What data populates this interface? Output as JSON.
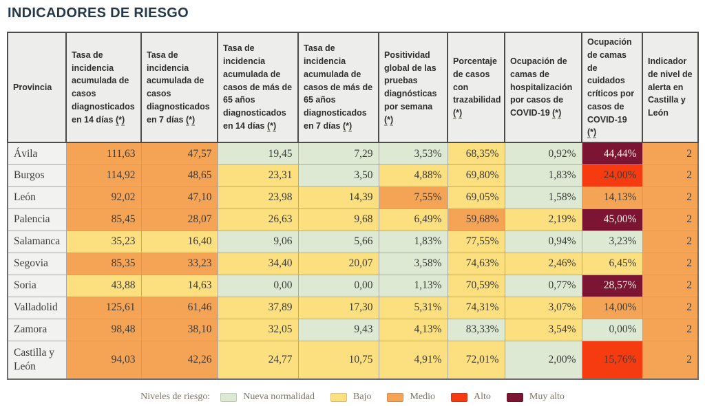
{
  "page": {
    "title": "INDICADORES DE RIESGO"
  },
  "table": {
    "footnote_marker": "(*)",
    "columns": [
      {
        "label": "Provincia",
        "footnote": false
      },
      {
        "label": "Tasa de incidencia acumulada de casos diagnosticados en 14 días",
        "footnote": true
      },
      {
        "label": "Tasa de incidencia acumulada de casos diagnosticados en 7 días",
        "footnote": true
      },
      {
        "label": "Tasa de incidencia acumulada de casos de más de 65 años diagnosticados en 14 días",
        "footnote": true
      },
      {
        "label": "Tasa de incidencia acumulada de casos de más de 65 años diagnosticados en 7 días",
        "footnote": true
      },
      {
        "label": "Positividad global de las pruebas diagnósticas por semana",
        "footnote": true
      },
      {
        "label": "Porcentaje de casos con trazabilidad",
        "footnote": true
      },
      {
        "label": "Ocupación de camas de hospitalización por casos de COVID-19",
        "footnote": true
      },
      {
        "label": "Ocupación de camas de cuidados críticos por casos de COVID-19",
        "footnote": true
      },
      {
        "label": "Indicador de nivel de alerta en Castilla y León",
        "footnote": false
      }
    ],
    "rows": [
      {
        "province": "Ávila",
        "cells": [
          {
            "value": "111,63",
            "level": "medio"
          },
          {
            "value": "47,57",
            "level": "medio"
          },
          {
            "value": "19,45",
            "level": "nueva"
          },
          {
            "value": "7,29",
            "level": "nueva"
          },
          {
            "value": "3,53%",
            "level": "nueva"
          },
          {
            "value": "68,35%",
            "level": "bajo"
          },
          {
            "value": "0,92%",
            "level": "nueva"
          },
          {
            "value": "44,44%",
            "level": "muyalto"
          },
          {
            "value": "2",
            "level": "medio"
          }
        ]
      },
      {
        "province": "Burgos",
        "cells": [
          {
            "value": "114,92",
            "level": "medio"
          },
          {
            "value": "48,65",
            "level": "medio"
          },
          {
            "value": "23,31",
            "level": "bajo"
          },
          {
            "value": "3,50",
            "level": "nueva"
          },
          {
            "value": "4,88%",
            "level": "bajo"
          },
          {
            "value": "69,80%",
            "level": "bajo"
          },
          {
            "value": "1,83%",
            "level": "nueva"
          },
          {
            "value": "24,00%",
            "level": "alto"
          },
          {
            "value": "2",
            "level": "medio"
          }
        ]
      },
      {
        "province": "León",
        "cells": [
          {
            "value": "92,02",
            "level": "medio"
          },
          {
            "value": "47,10",
            "level": "medio"
          },
          {
            "value": "23,98",
            "level": "bajo"
          },
          {
            "value": "14,39",
            "level": "bajo"
          },
          {
            "value": "7,55%",
            "level": "medio"
          },
          {
            "value": "69,05%",
            "level": "bajo"
          },
          {
            "value": "1,58%",
            "level": "nueva"
          },
          {
            "value": "14,13%",
            "level": "medio"
          },
          {
            "value": "2",
            "level": "medio"
          }
        ]
      },
      {
        "province": "Palencia",
        "cells": [
          {
            "value": "85,45",
            "level": "medio"
          },
          {
            "value": "28,07",
            "level": "medio"
          },
          {
            "value": "26,63",
            "level": "bajo"
          },
          {
            "value": "9,68",
            "level": "bajo"
          },
          {
            "value": "6,49%",
            "level": "bajo"
          },
          {
            "value": "59,68%",
            "level": "medio"
          },
          {
            "value": "2,19%",
            "level": "bajo"
          },
          {
            "value": "45,00%",
            "level": "muyalto"
          },
          {
            "value": "2",
            "level": "medio"
          }
        ]
      },
      {
        "province": "Salamanca",
        "cells": [
          {
            "value": "35,23",
            "level": "bajo"
          },
          {
            "value": "16,40",
            "level": "bajo"
          },
          {
            "value": "9,06",
            "level": "nueva"
          },
          {
            "value": "5,66",
            "level": "nueva"
          },
          {
            "value": "1,83%",
            "level": "nueva"
          },
          {
            "value": "77,55%",
            "level": "bajo"
          },
          {
            "value": "0,94%",
            "level": "nueva"
          },
          {
            "value": "3,23%",
            "level": "nueva"
          },
          {
            "value": "2",
            "level": "medio"
          }
        ]
      },
      {
        "province": "Segovia",
        "cells": [
          {
            "value": "85,35",
            "level": "medio"
          },
          {
            "value": "33,23",
            "level": "medio"
          },
          {
            "value": "34,40",
            "level": "bajo"
          },
          {
            "value": "20,07",
            "level": "bajo"
          },
          {
            "value": "3,58%",
            "level": "nueva"
          },
          {
            "value": "74,63%",
            "level": "bajo"
          },
          {
            "value": "2,46%",
            "level": "bajo"
          },
          {
            "value": "6,45%",
            "level": "bajo"
          },
          {
            "value": "2",
            "level": "medio"
          }
        ]
      },
      {
        "province": "Soria",
        "cells": [
          {
            "value": "43,88",
            "level": "bajo"
          },
          {
            "value": "14,63",
            "level": "bajo"
          },
          {
            "value": "0,00",
            "level": "nueva"
          },
          {
            "value": "0,00",
            "level": "nueva"
          },
          {
            "value": "1,13%",
            "level": "nueva"
          },
          {
            "value": "70,59%",
            "level": "bajo"
          },
          {
            "value": "0,77%",
            "level": "nueva"
          },
          {
            "value": "28,57%",
            "level": "muyalto"
          },
          {
            "value": "2",
            "level": "medio"
          }
        ]
      },
      {
        "province": "Valladolid",
        "cells": [
          {
            "value": "125,61",
            "level": "medio"
          },
          {
            "value": "61,46",
            "level": "medio"
          },
          {
            "value": "37,89",
            "level": "bajo"
          },
          {
            "value": "17,30",
            "level": "bajo"
          },
          {
            "value": "5,31%",
            "level": "bajo"
          },
          {
            "value": "74,31%",
            "level": "bajo"
          },
          {
            "value": "3,07%",
            "level": "bajo"
          },
          {
            "value": "14,00%",
            "level": "medio"
          },
          {
            "value": "2",
            "level": "medio"
          }
        ]
      },
      {
        "province": "Zamora",
        "cells": [
          {
            "value": "98,48",
            "level": "medio"
          },
          {
            "value": "38,10",
            "level": "medio"
          },
          {
            "value": "32,05",
            "level": "bajo"
          },
          {
            "value": "9,43",
            "level": "nueva"
          },
          {
            "value": "4,13%",
            "level": "bajo"
          },
          {
            "value": "83,33%",
            "level": "nueva"
          },
          {
            "value": "3,54%",
            "level": "bajo"
          },
          {
            "value": "0,00%",
            "level": "nueva"
          },
          {
            "value": "2",
            "level": "medio"
          }
        ]
      },
      {
        "province": "Castilla y León",
        "cells": [
          {
            "value": "94,03",
            "level": "medio"
          },
          {
            "value": "42,26",
            "level": "medio"
          },
          {
            "value": "24,77",
            "level": "bajo"
          },
          {
            "value": "10,75",
            "level": "bajo"
          },
          {
            "value": "4,91%",
            "level": "bajo"
          },
          {
            "value": "72,01%",
            "level": "bajo"
          },
          {
            "value": "2,00%",
            "level": "nueva"
          },
          {
            "value": "15,76%",
            "level": "alto"
          },
          {
            "value": "2",
            "level": "medio"
          }
        ]
      }
    ]
  },
  "legend": {
    "label": "Niveles de riesgo:",
    "items": [
      {
        "key": "nueva",
        "label": "Nueva normalidad",
        "color": "#dde9d3"
      },
      {
        "key": "bajo",
        "label": "Bajo",
        "color": "#fcdf7e"
      },
      {
        "key": "medio",
        "label": "Medio",
        "color": "#f5a455"
      },
      {
        "key": "alto",
        "label": "Alto",
        "color": "#f73b10"
      },
      {
        "key": "muyalto",
        "label": "Muy alto",
        "color": "#7c1433"
      }
    ],
    "muyalto_text_color": "#f8f0e3"
  }
}
